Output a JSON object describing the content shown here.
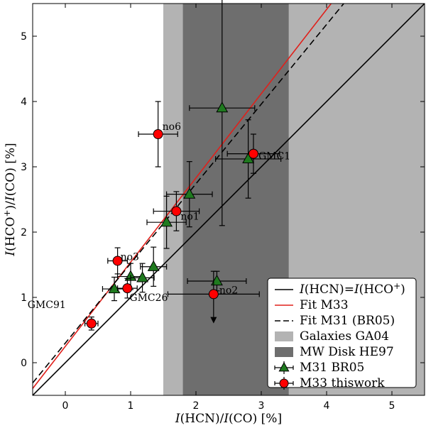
{
  "chart_data": {
    "type": "scatter",
    "xlabel_parts": [
      "I",
      "(HCN)/",
      "I",
      "(CO) [%]"
    ],
    "ylabel_parts": [
      "I",
      "(HCO",
      "+",
      ")/",
      "I",
      "(CO) [%]"
    ],
    "xlim": [
      -0.5,
      5.5
    ],
    "ylim": [
      -0.5,
      5.5
    ],
    "xticks": [
      0,
      1,
      2,
      3,
      4,
      5
    ],
    "yticks": [
      0,
      1,
      2,
      3,
      4,
      5
    ],
    "bands": [
      {
        "name": "Galaxies GA04",
        "x0": 1.5,
        "x1": 5.5,
        "color": "#b3b3b3"
      },
      {
        "name": "MW Disk HE97",
        "x0": 1.8,
        "x1": 3.42,
        "color": "#6e6e6e"
      }
    ],
    "lines": [
      {
        "name": "I(HCN)=I(HCO+)",
        "slope": 1.0,
        "intercept": 0.0,
        "color": "#000000",
        "dash": false
      },
      {
        "name": "Fit M33",
        "slope": 1.29,
        "intercept": 0.25,
        "color": "#e0201b",
        "dash": false
      },
      {
        "name": "Fit M31 (BR05)",
        "slope": 1.22,
        "intercept": 0.3,
        "color": "#000000",
        "dash": true
      }
    ],
    "series": [
      {
        "name": "M31 BR05",
        "marker": "triangle",
        "color": "#1f7a1f",
        "points": [
          {
            "x": 0.75,
            "y": 1.13,
            "xerr": 0.18,
            "yerr": 0.18
          },
          {
            "x": 1.0,
            "y": 1.32,
            "xerr": 0.2,
            "yerr": 0.2
          },
          {
            "x": 1.18,
            "y": 1.3,
            "xerr": 0.18,
            "yerr": 0.22
          },
          {
            "x": 1.35,
            "y": 1.47,
            "xerr": 0.2,
            "yerr": 0.3
          },
          {
            "x": 1.55,
            "y": 2.15,
            "xerr": 0.3,
            "yerr": 0.4
          },
          {
            "x": 1.9,
            "y": 2.58,
            "xerr": 0.35,
            "yerr": 0.5
          },
          {
            "x": 2.4,
            "y": 3.9,
            "xerr": 0.5,
            "yerr": 1.8
          },
          {
            "x": 2.32,
            "y": 1.25,
            "xerr": 0.45,
            "yerr": 0.15
          },
          {
            "x": 2.8,
            "y": 3.12,
            "xerr": 0.5,
            "yerr": 0.6
          }
        ]
      },
      {
        "name": "M33 thiswork",
        "marker": "circle",
        "color": "#ff0000",
        "points": [
          {
            "x": 0.4,
            "y": 0.6,
            "xerr": 0.1,
            "yerr": 0.1,
            "label": "GMC91"
          },
          {
            "x": 0.8,
            "y": 1.56,
            "xerr": 0.15,
            "yerr": 0.2,
            "label": "no3"
          },
          {
            "x": 0.95,
            "y": 1.14,
            "xerr": 0.15,
            "yerr": 0.15,
            "label": "GMC26"
          },
          {
            "x": 1.42,
            "y": 3.5,
            "xerr": 0.3,
            "yerr": 0.5,
            "label": "no6"
          },
          {
            "x": 1.7,
            "y": 2.32,
            "xerr": 0.35,
            "yerr": 0.3,
            "label": "no1"
          },
          {
            "x": 2.27,
            "y": 1.05,
            "xerr": 0.7,
            "yerr": 0.35,
            "label": "no2",
            "upper_limit": true
          },
          {
            "x": 2.88,
            "y": 3.2,
            "xerr": 0.4,
            "yerr": 0.3,
            "label": "GMC1"
          }
        ]
      }
    ],
    "legend": {
      "position": "bottom-right",
      "entries": [
        {
          "label_parts": [
            "I",
            "(HCN)=",
            "I",
            "(HCO",
            "+",
            ")"
          ],
          "kind": "line",
          "color": "#000000"
        },
        {
          "label": "Fit M33",
          "kind": "line",
          "color": "#e0201b"
        },
        {
          "label": "Fit M31 (BR05)",
          "kind": "dash",
          "color": "#000000"
        },
        {
          "label": "Galaxies GA04",
          "kind": "patch",
          "color": "#b3b3b3"
        },
        {
          "label": "MW Disk HE97",
          "kind": "patch",
          "color": "#6e6e6e"
        },
        {
          "label": "M31 BR05",
          "kind": "triangle",
          "color": "#1f7a1f"
        },
        {
          "label": "M33 thiswork",
          "kind": "circle",
          "color": "#ff0000"
        }
      ]
    }
  }
}
